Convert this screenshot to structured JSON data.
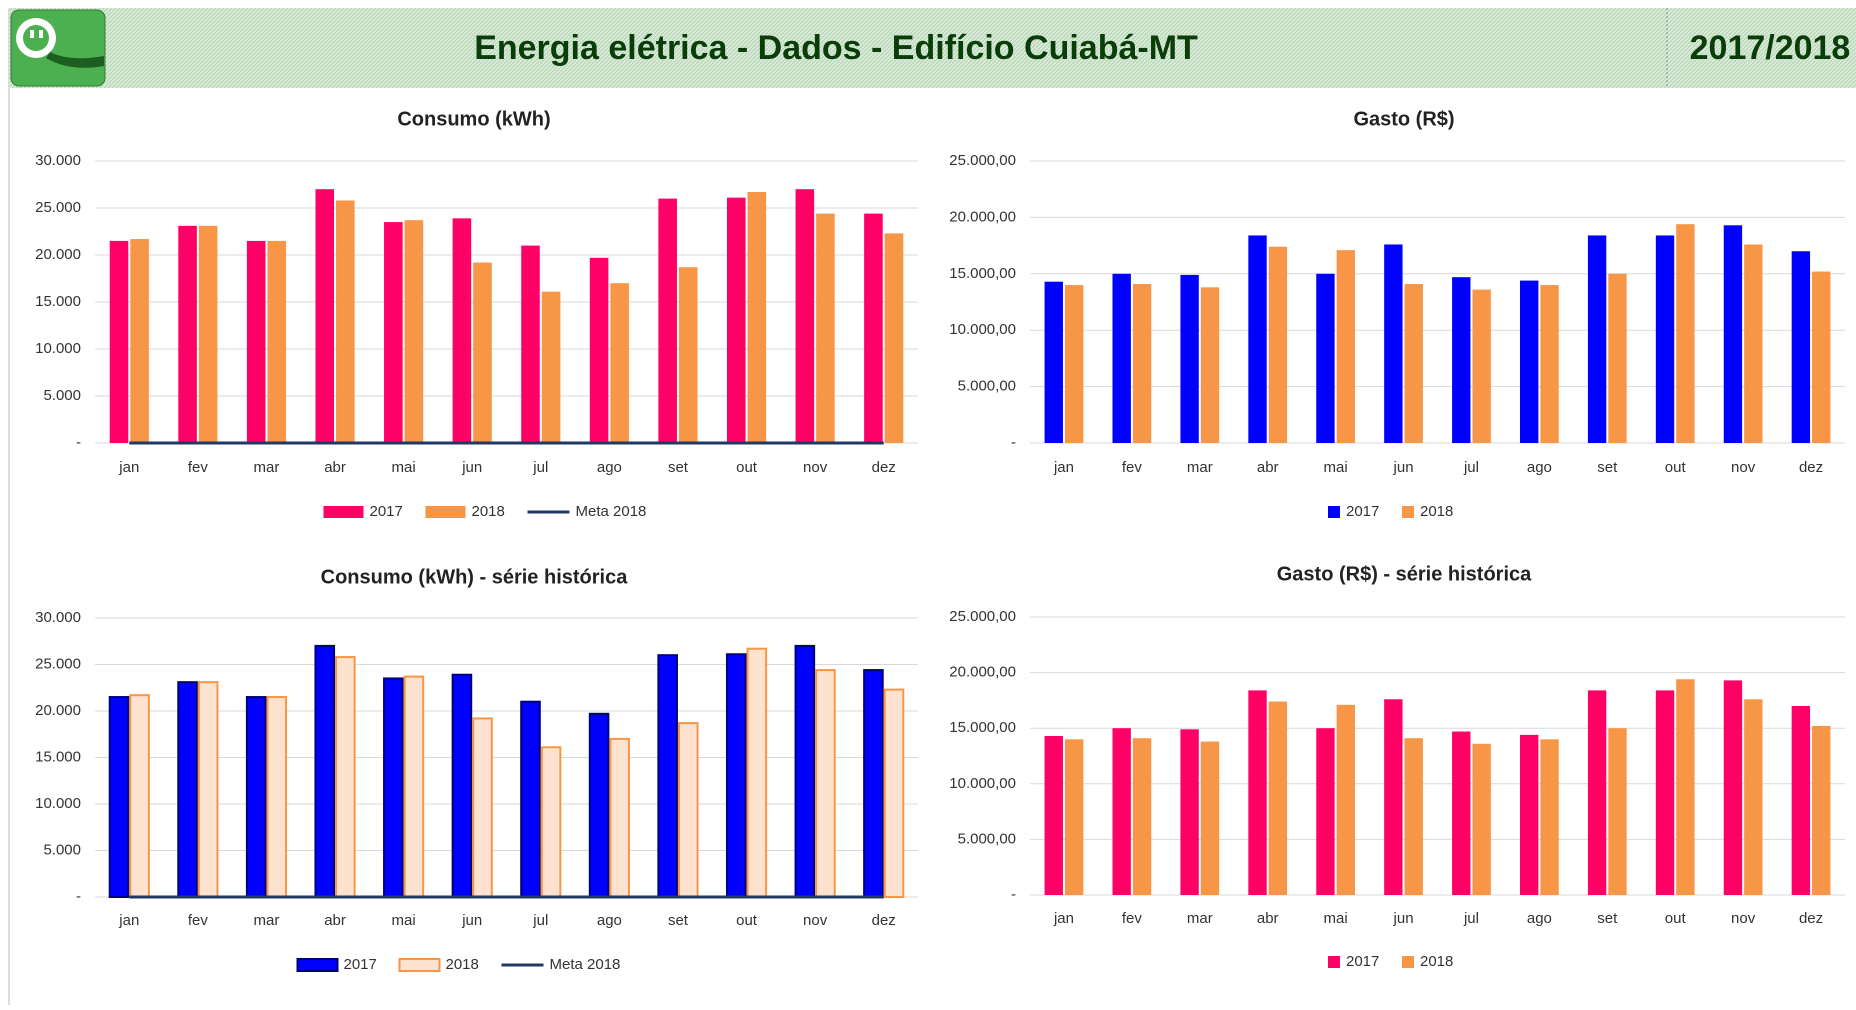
{
  "header": {
    "title": "Energia elétrica - Dados - Edifício Cuiabá-MT",
    "period": "2017/2018"
  },
  "chart_data": [
    {
      "type": "bar",
      "title": "Consumo (kWh)",
      "categories": [
        "jan",
        "fev",
        "mar",
        "abr",
        "mai",
        "jun",
        "jul",
        "ago",
        "set",
        "out",
        "nov",
        "dez"
      ],
      "series": [
        {
          "name": "2017",
          "color": "#ff0066",
          "values": [
            21500,
            23100,
            21500,
            27000,
            23500,
            23900,
            21000,
            19700,
            26000,
            26100,
            27000,
            24400
          ]
        },
        {
          "name": "2018",
          "color": "#f79646",
          "values": [
            21700,
            23100,
            21500,
            25800,
            23700,
            19200,
            16100,
            17000,
            18700,
            26700,
            24400,
            22300
          ]
        },
        {
          "name": "Meta 2018",
          "type": "line",
          "color": "#1f3864",
          "values": [
            0,
            0,
            0,
            0,
            0,
            0,
            0,
            0,
            0,
            0,
            0,
            0
          ]
        }
      ],
      "ylim": [
        0,
        30000
      ],
      "yticks": [
        {
          "value": 0,
          "label": "-"
        },
        {
          "value": 5000,
          "label": "5.000"
        },
        {
          "value": 10000,
          "label": "10.000"
        },
        {
          "value": 15000,
          "label": "15.000"
        },
        {
          "value": 20000,
          "label": "20.000"
        },
        {
          "value": 25000,
          "label": "25.000"
        },
        {
          "value": 30000,
          "label": "30.000"
        }
      ],
      "grid": true,
      "legend": "bottom"
    },
    {
      "type": "bar",
      "title": "Gasto (R$)",
      "categories": [
        "jan",
        "fev",
        "mar",
        "abr",
        "mai",
        "jun",
        "jul",
        "ago",
        "set",
        "out",
        "nov",
        "dez"
      ],
      "series": [
        {
          "name": "2017",
          "color": "#0000ff",
          "values": [
            14300,
            15000,
            14900,
            18400,
            15000,
            17600,
            14700,
            14400,
            18400,
            18400,
            19300,
            17000
          ]
        },
        {
          "name": "2018",
          "color": "#f79646",
          "values": [
            14000,
            14100,
            13800,
            17400,
            17100,
            14100,
            13600,
            14000,
            15000,
            19400,
            17600,
            15200
          ]
        }
      ],
      "ylim": [
        0,
        25000
      ],
      "yticks": [
        {
          "value": 0,
          "label": "-"
        },
        {
          "value": 5000,
          "label": "5.000,00"
        },
        {
          "value": 10000,
          "label": "10.000,00"
        },
        {
          "value": 15000,
          "label": "15.000,00"
        },
        {
          "value": 20000,
          "label": "20.000,00"
        },
        {
          "value": 25000,
          "label": "25.000,00"
        }
      ],
      "grid": true,
      "legend": "bottom"
    },
    {
      "type": "bar",
      "title": "Consumo (kWh) - série histórica",
      "categories": [
        "jan",
        "fev",
        "mar",
        "abr",
        "mai",
        "jun",
        "jul",
        "ago",
        "set",
        "out",
        "nov",
        "dez"
      ],
      "series": [
        {
          "name": "2017",
          "color": "#0000ff",
          "edgecolor": "#00007a",
          "values": [
            21500,
            23100,
            21500,
            27000,
            23500,
            23900,
            21000,
            19700,
            26000,
            26100,
            27000,
            24400
          ]
        },
        {
          "name": "2018",
          "color": "#fde3cf",
          "edgecolor": "#f79646",
          "values": [
            21700,
            23100,
            21500,
            25800,
            23700,
            19200,
            16100,
            17000,
            18700,
            26700,
            24400,
            22300
          ]
        },
        {
          "name": "Meta 2018",
          "type": "line",
          "color": "#1f3864",
          "values": [
            0,
            0,
            0,
            0,
            0,
            0,
            0,
            0,
            0,
            0,
            0,
            0
          ]
        }
      ],
      "ylim": [
        0,
        30000
      ],
      "yticks": [
        {
          "value": 0,
          "label": "-"
        },
        {
          "value": 5000,
          "label": "5.000"
        },
        {
          "value": 10000,
          "label": "10.000"
        },
        {
          "value": 15000,
          "label": "15.000"
        },
        {
          "value": 20000,
          "label": "20.000"
        },
        {
          "value": 25000,
          "label": "25.000"
        },
        {
          "value": 30000,
          "label": "30.000"
        }
      ],
      "grid": true,
      "legend": "bottom"
    },
    {
      "type": "bar",
      "title": "Gasto (R$) - série histórica",
      "categories": [
        "jan",
        "fev",
        "mar",
        "abr",
        "mai",
        "jun",
        "jul",
        "ago",
        "set",
        "out",
        "nov",
        "dez"
      ],
      "series": [
        {
          "name": "2017",
          "color": "#ff0066",
          "values": [
            14300,
            15000,
            14900,
            18400,
            15000,
            17600,
            14700,
            14400,
            18400,
            18400,
            19300,
            17000
          ]
        },
        {
          "name": "2018",
          "color": "#f79646",
          "values": [
            14000,
            14100,
            13800,
            17400,
            17100,
            14100,
            13600,
            14000,
            15000,
            19400,
            17600,
            15200
          ]
        }
      ],
      "ylim": [
        0,
        25000
      ],
      "yticks": [
        {
          "value": 0,
          "label": "-"
        },
        {
          "value": 5000,
          "label": "5.000,00"
        },
        {
          "value": 10000,
          "label": "10.000,00"
        },
        {
          "value": 15000,
          "label": "15.000,00"
        },
        {
          "value": 20000,
          "label": "20.000,00"
        },
        {
          "value": 25000,
          "label": "25.000,00"
        }
      ],
      "grid": true,
      "legend": "bottom"
    }
  ]
}
